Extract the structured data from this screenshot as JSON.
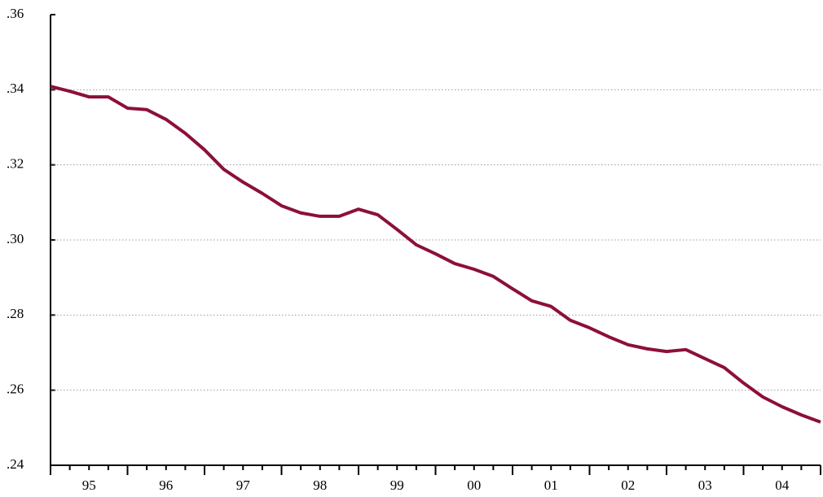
{
  "chart_data": {
    "type": "line",
    "x": [
      1995,
      1995.25,
      1995.5,
      1995.75,
      1996,
      1996.25,
      1996.5,
      1996.75,
      1997,
      1997.25,
      1997.5,
      1997.75,
      1998,
      1998.25,
      1998.5,
      1998.75,
      1999,
      1999.25,
      1999.5,
      1999.75,
      2000,
      2000.25,
      2000.5,
      2000.75,
      2001,
      2001.25,
      2001.5,
      2001.75,
      2002,
      2002.25,
      2002.5,
      2002.75,
      2003,
      2003.25,
      2003.5,
      2003.75,
      2004,
      2004.25,
      2004.5,
      2004.75,
      2005
    ],
    "series": [
      {
        "color": "#8c1038",
        "values": [
          0.3409,
          0.3396,
          0.3381,
          0.3381,
          0.3351,
          0.3347,
          0.3321,
          0.3284,
          0.324,
          0.3188,
          0.3154,
          0.3124,
          0.3091,
          0.3072,
          0.3063,
          0.3063,
          0.3082,
          0.3067,
          0.3028,
          0.2987,
          0.2963,
          0.2937,
          0.2922,
          0.2903,
          0.287,
          0.2838,
          0.2823,
          0.2786,
          0.2766,
          0.2742,
          0.2721,
          0.271,
          0.2703,
          0.2708,
          0.2684,
          0.266,
          0.2619,
          0.2582,
          0.2556,
          0.2534,
          0.2515
        ]
      }
    ],
    "xlim": [
      1995,
      2005
    ],
    "xticks": [
      {
        "value": 1995.5,
        "label": "95"
      },
      {
        "value": 1996.5,
        "label": "96"
      },
      {
        "value": 1997.5,
        "label": "97"
      },
      {
        "value": 1998.5,
        "label": "98"
      },
      {
        "value": 1999.5,
        "label": "99"
      },
      {
        "value": 2000.5,
        "label": "00"
      },
      {
        "value": 2001.5,
        "label": "01"
      },
      {
        "value": 2002.5,
        "label": "02"
      },
      {
        "value": 2003.5,
        "label": "03"
      },
      {
        "value": 2004.5,
        "label": "04"
      }
    ],
    "ylim": [
      0.24,
      0.36
    ],
    "yticks": [
      {
        "value": 0.24,
        "label": ".24"
      },
      {
        "value": 0.26,
        "label": ".26"
      },
      {
        "value": 0.28,
        "label": ".28"
      },
      {
        "value": 0.3,
        "label": ".30"
      },
      {
        "value": 0.32,
        "label": ".32"
      },
      {
        "value": 0.34,
        "label": ".34"
      },
      {
        "value": 0.36,
        "label": ".36"
      }
    ],
    "grid": true
  }
}
